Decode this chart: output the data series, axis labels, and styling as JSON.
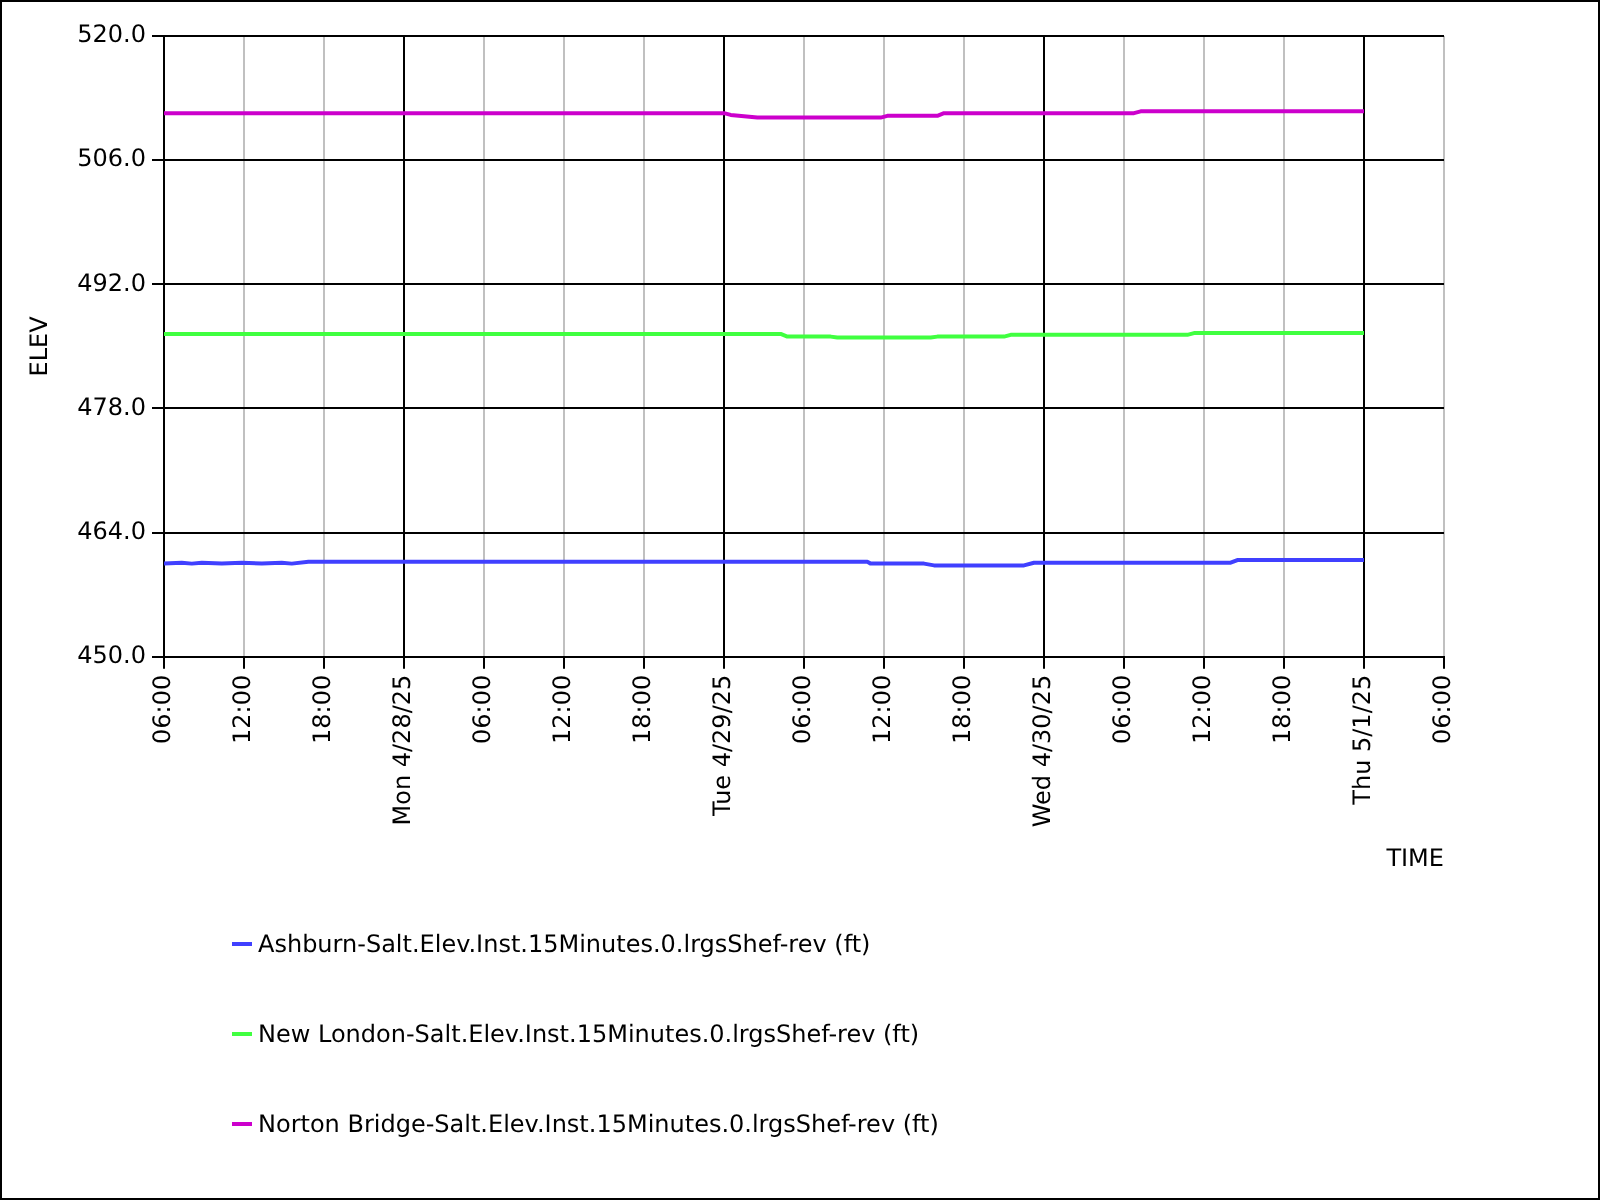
{
  "chart_data": {
    "type": "line",
    "xlabel": "TIME",
    "ylabel": "ELEV",
    "ylim": [
      450,
      520
    ],
    "yticks": [
      {
        "value": 450,
        "label": "450.0"
      },
      {
        "value": 464,
        "label": "464.0"
      },
      {
        "value": 478,
        "label": "478.0"
      },
      {
        "value": 492,
        "label": "492.0"
      },
      {
        "value": 506,
        "label": "506.0"
      },
      {
        "value": 520,
        "label": "520.0"
      }
    ],
    "xlim": [
      "--04-27T06:00",
      "--05-01T06:00"
    ],
    "xticks": [
      {
        "value": "--04-27T06:00",
        "label": "06:00"
      },
      {
        "value": "--04-27T12:00",
        "label": "12:00"
      },
      {
        "value": "--04-27T18:00",
        "label": "18:00"
      },
      {
        "value": "--04-28T00:00",
        "label": "Mon 4/28/25"
      },
      {
        "value": "--04-28T06:00",
        "label": "06:00"
      },
      {
        "value": "--04-28T12:00",
        "label": "12:00"
      },
      {
        "value": "--04-28T18:00",
        "label": "18:00"
      },
      {
        "value": "--04-29T00:00",
        "label": "Tue 4/29/25"
      },
      {
        "value": "--04-29T06:00",
        "label": "06:00"
      },
      {
        "value": "--04-29T12:00",
        "label": "12:00"
      },
      {
        "value": "--04-29T18:00",
        "label": "18:00"
      },
      {
        "value": "--04-30T00:00",
        "label": "Wed 4/30/25"
      },
      {
        "value": "--04-30T06:00",
        "label": "06:00"
      },
      {
        "value": "--04-30T12:00",
        "label": "12:00"
      },
      {
        "value": "--04-30T18:00",
        "label": "18:00"
      },
      {
        "value": "--05-01T00:00",
        "label": "Thu 5/1/25"
      },
      {
        "value": "--05-01T06:00",
        "label": "06:00"
      }
    ],
    "grid": true,
    "legend": "bottom",
    "marker": "none",
    "line_style": "solid",
    "series": [
      {
        "name": "Ashburn-Salt.Elev.Inst.15Minutes.0.lrgsShef-rev (ft)",
        "color": "#4040ff",
        "x": [
          "--04-27T06:00",
          "--04-27T07:20",
          "--04-27T08:05",
          "--04-27T08:50",
          "--04-27T10:20",
          "--04-27T11:50",
          "--04-27T13:20",
          "--04-27T14:50",
          "--04-27T15:35",
          "--04-27T16:50",
          "--04-29T10:45",
          "--04-29T11:00",
          "--04-29T15:00",
          "--04-29T15:45",
          "--04-29T22:30",
          "--04-29T23:15",
          "--04-30T14:00",
          "--04-30T14:30",
          "--05-01T00:00"
        ],
        "values": [
          460.5,
          460.6,
          460.5,
          460.6,
          460.5,
          460.6,
          460.5,
          460.6,
          460.5,
          460.7,
          460.7,
          460.5,
          460.5,
          460.3,
          460.3,
          460.6,
          460.6,
          460.9,
          460.9
        ]
      },
      {
        "name": "New London-Salt.Elev.Inst.15Minutes.0.lrgsShef-rev (ft)",
        "color": "#40ff40",
        "x": [
          "--04-27T06:00",
          "--04-29T04:15",
          "--04-29T04:45",
          "--04-29T08:00",
          "--04-29T08:30",
          "--04-29T15:30",
          "--04-29T16:00",
          "--04-29T21:00",
          "--04-29T21:30",
          "--04-30T10:45",
          "--04-30T11:15",
          "--05-01T00:00"
        ],
        "values": [
          486.4,
          486.4,
          486.1,
          486.1,
          486.0,
          486.0,
          486.1,
          486.1,
          486.3,
          486.3,
          486.5,
          486.5
        ]
      },
      {
        "name": "Norton Bridge-Salt.Elev.Inst.15Minutes.0.lrgsShef-rev (ft)",
        "color": "#cc00cc",
        "x": [
          "--04-27T06:00",
          "--04-29T00:00",
          "--04-29T00:30",
          "--04-29T02:30",
          "--04-29T11:45",
          "--04-29T12:15",
          "--04-29T16:00",
          "--04-29T16:30",
          "--04-30T06:45",
          "--04-30T07:15",
          "--05-01T00:00"
        ],
        "values": [
          511.3,
          511.3,
          511.1,
          510.8,
          510.8,
          511.0,
          511.0,
          511.3,
          511.3,
          511.5,
          511.5
        ]
      }
    ]
  }
}
